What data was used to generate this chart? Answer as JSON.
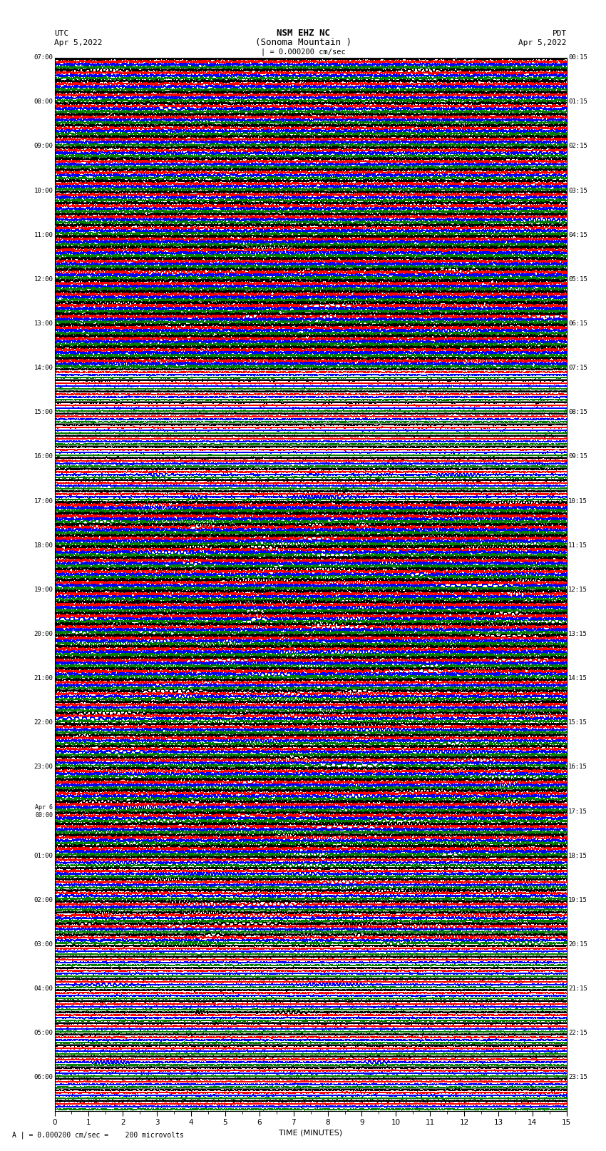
{
  "title_line1": "NSM EHZ NC",
  "title_line2": "(Sonoma Mountain )",
  "title_line3": "| = 0.000200 cm/sec",
  "left_label_top": "UTC",
  "left_label_date": "Apr 5,2022",
  "right_label_top": "PDT",
  "right_label_date": "Apr 5,2022",
  "xlabel": "TIME (MINUTES)",
  "bottom_note": "A | = 0.000200 cm/sec =    200 microvolts",
  "colors": [
    "black",
    "red",
    "blue",
    "green"
  ],
  "n_groups": 95,
  "n_minutes": 15,
  "xmin": 0,
  "xmax": 15,
  "bg_color": "#ffffff",
  "trace_linewidth": 0.5,
  "seed": 42,
  "utc_labels": [
    "07:00",
    "",
    "",
    "",
    "08:00",
    "",
    "",
    "",
    "09:00",
    "",
    "",
    "",
    "10:00",
    "",
    "",
    "",
    "11:00",
    "",
    "",
    "",
    "12:00",
    "",
    "",
    "",
    "13:00",
    "",
    "",
    "",
    "14:00",
    "",
    "",
    "",
    "15:00",
    "",
    "",
    "",
    "16:00",
    "",
    "",
    "",
    "17:00",
    "",
    "",
    "",
    "18:00",
    "",
    "",
    "",
    "19:00",
    "",
    "",
    "",
    "20:00",
    "",
    "",
    "",
    "21:00",
    "",
    "",
    "",
    "22:00",
    "",
    "",
    "",
    "23:00",
    "",
    "",
    "",
    "Apr 6\n00:00",
    "",
    "",
    "",
    "01:00",
    "",
    "",
    "",
    "02:00",
    "",
    "",
    "",
    "03:00",
    "",
    "",
    "",
    "04:00",
    "",
    "",
    "",
    "05:00",
    "",
    "",
    "",
    "06:00",
    "",
    ""
  ],
  "pdt_labels": [
    "00:15",
    "",
    "",
    "",
    "01:15",
    "",
    "",
    "",
    "02:15",
    "",
    "",
    "",
    "03:15",
    "",
    "",
    "",
    "04:15",
    "",
    "",
    "",
    "05:15",
    "",
    "",
    "",
    "06:15",
    "",
    "",
    "",
    "07:15",
    "",
    "",
    "",
    "08:15",
    "",
    "",
    "",
    "09:15",
    "",
    "",
    "",
    "10:15",
    "",
    "",
    "",
    "11:15",
    "",
    "",
    "",
    "12:15",
    "",
    "",
    "",
    "13:15",
    "",
    "",
    "",
    "14:15",
    "",
    "",
    "",
    "15:15",
    "",
    "",
    "",
    "16:15",
    "",
    "",
    "",
    "17:15",
    "",
    "",
    "",
    "18:15",
    "",
    "",
    "",
    "19:15",
    "",
    "",
    "",
    "20:15",
    "",
    "",
    "",
    "21:15",
    "",
    "",
    "",
    "22:15",
    "",
    "",
    "",
    "23:15",
    "",
    ""
  ]
}
